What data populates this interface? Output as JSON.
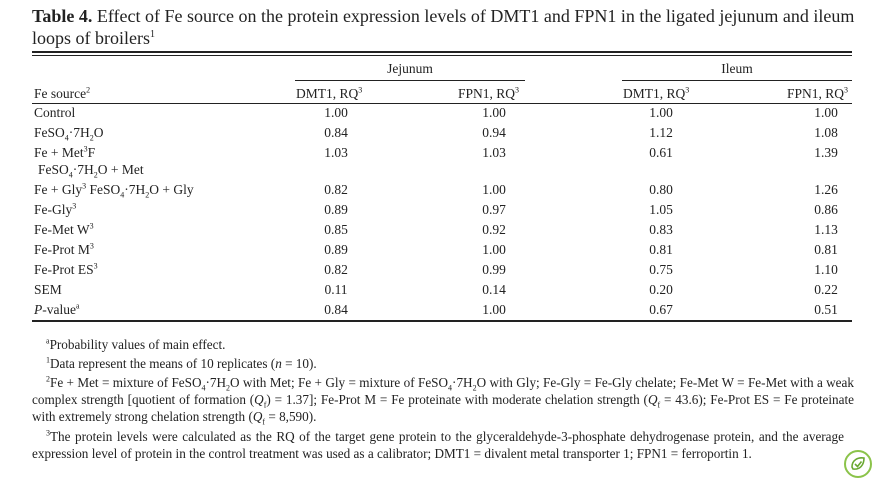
{
  "title": {
    "label": "Table 4.",
    "text": "Effect of Fe source on the protein expression levels of DMT1 and FPN1 in the ligated jejunum and ileum loops of broilers",
    "sup": "1"
  },
  "groups": {
    "jejunum": "Jejunum",
    "ileum": "Ileum"
  },
  "headers": {
    "source": "Fe source",
    "source_sup": "2",
    "dmt1": "DMT1, RQ",
    "fpn1": "FPN1, RQ",
    "rq_sup": "3"
  },
  "rows": [
    {
      "label": "Control",
      "sup": "",
      "values": [
        "1.00",
        "1.00",
        "1.00",
        "1.00"
      ]
    },
    {
      "label": "FeSO",
      "sup": "",
      "values": [
        "0.84",
        "0.94",
        "1.12",
        "1.08"
      ]
    },
    {
      "label": "Fe + Met",
      "sup": "3",
      "values": [
        "1.03",
        "1.03",
        "0.61",
        "1.39"
      ]
    },
    {
      "label": "Fe + Gly",
      "sup": "3",
      "values": [
        "0.82",
        "1.00",
        "0.80",
        "1.26"
      ]
    },
    {
      "label": "Fe-Gly",
      "sup": "3",
      "values": [
        "0.89",
        "0.97",
        "1.05",
        "0.86"
      ]
    },
    {
      "label": "Fe-Met W",
      "sup": "3",
      "values": [
        "0.85",
        "0.92",
        "0.83",
        "1.13"
      ]
    },
    {
      "label": "Fe-Prot M",
      "sup": "3",
      "values": [
        "0.89",
        "1.00",
        "0.81",
        "0.81"
      ]
    },
    {
      "label": "Fe-Prot ES",
      "sup": "3",
      "values": [
        "0.82",
        "0.99",
        "0.75",
        "1.10"
      ]
    },
    {
      "label": "SEM",
      "sup": "",
      "values": [
        "0.11",
        "0.14",
        "0.20",
        "0.22"
      ]
    },
    {
      "label": "P",
      "sup": "a",
      "values": [
        "0.84",
        "1.00",
        "0.67",
        "0.51"
      ]
    }
  ],
  "row_extras": {
    "feso4_suffix": "·7H",
    "feso4_sub4": "4",
    "feso4_sub2": "2",
    "feso4_end": "O",
    "met_tail": "F",
    "met_line2": "FeSO",
    "met_line2_mid": "·7H",
    "met_line2_end": "O + Met",
    "gly_tail": " FeSO",
    "gly_mid": "·7H",
    "gly_end": "O + Gly",
    "pvalue_rest": "-value"
  },
  "notes": {
    "a": "Probability values of main effect.",
    "a_mark": "a",
    "n1_mark": "1",
    "n1": "Data represent the means of 10 replicates (",
    "n1_n": "n",
    "n1_end": " = 10).",
    "n2_mark": "2",
    "n2_p1": "Fe + Met = mixture of FeSO",
    "n2_p2": "·7H",
    "n2_p3": "O with Met; Fe + Gly = mixture of FeSO",
    "n2_p4": "·7H",
    "n2_p5": "O with Gly; Fe-Gly = Fe-Gly chelate; Fe-Met W = Fe-Met with a weak complex strength [quotient of formation (",
    "n2_q1": "Q",
    "n2_q1s": "f",
    "n2_p6": ") = 1.37]; Fe-Prot M = Fe proteinate with moderate chelation strength (",
    "n2_q2": "Q",
    "n2_q2s": "f",
    "n2_p7": " = 43.6); Fe-Prot ES = Fe proteinate with extremely strong chelation strength (",
    "n2_q3": "Q",
    "n2_q3s": "f",
    "n2_p8": " = 8,590).",
    "n3_mark": "3",
    "n3": "The protein levels were calculated as the RQ of the target gene protein to the glyceraldehyde-3-phosphate dehydrogenase protein, and the average expression level of protein in the control treatment was used as a calibrator; DMT1 = divalent metal transporter 1; FPN1 = ferroportin 1."
  },
  "badge_icon": "leaf-check-icon"
}
